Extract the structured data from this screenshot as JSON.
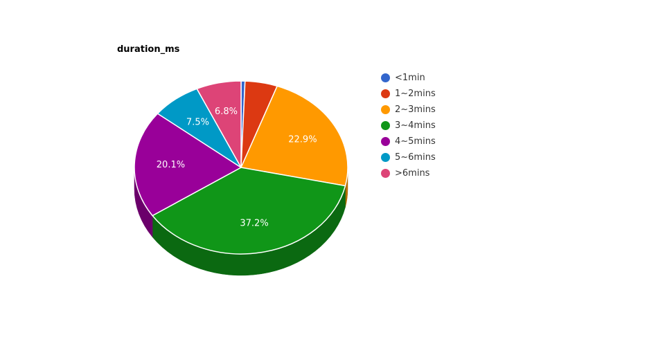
{
  "chart_data": {
    "type": "pie",
    "title": "duration_ms",
    "categories": [
      "<1min",
      "1~2mins",
      "2~3mins",
      "3~4mins",
      "4~5mins",
      "5~6mins",
      ">6mins"
    ],
    "values": [
      0.6,
      4.9,
      22.9,
      37.2,
      20.1,
      7.5,
      6.8
    ],
    "value_labels": [
      "",
      "",
      "22.9%",
      "37.2%",
      "20.1%",
      "7.5%",
      "6.8%"
    ],
    "colors": [
      "#3366cc",
      "#dc3912",
      "#ff9900",
      "#109618",
      "#990099",
      "#0099c6",
      "#dd4477"
    ],
    "start_angle_deg": 0,
    "direction": "clockwise",
    "style": "3d",
    "legend": "right"
  }
}
